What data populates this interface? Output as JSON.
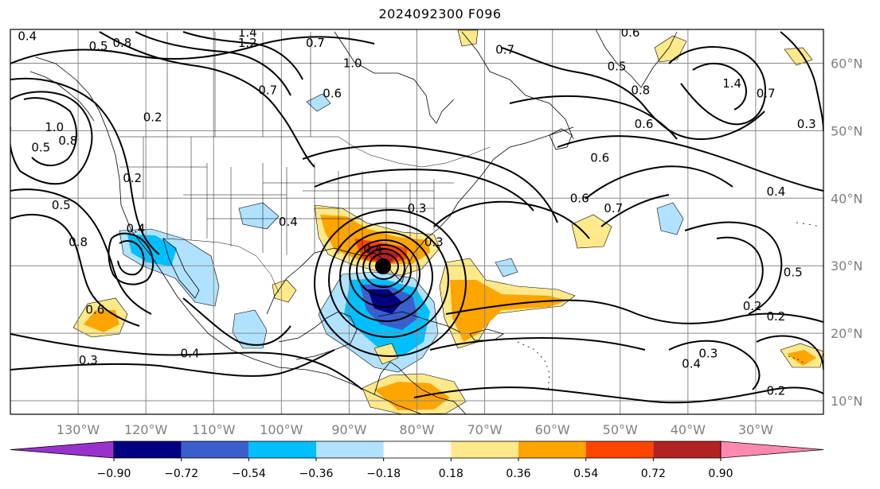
{
  "title": "2024092300 F096",
  "map": {
    "projection": "PlateCarree",
    "lon_range": [
      -140,
      -20
    ],
    "lat_range": [
      8,
      65
    ],
    "grid": true,
    "lon_ticks": [
      {
        "lon": -130,
        "label": "130°W"
      },
      {
        "lon": -120,
        "label": "120°W"
      },
      {
        "lon": -110,
        "label": "110°W"
      },
      {
        "lon": -100,
        "label": "100°W"
      },
      {
        "lon": -90,
        "label": "90°W"
      },
      {
        "lon": -80,
        "label": "80°W"
      },
      {
        "lon": -70,
        "label": "70°W"
      },
      {
        "lon": -60,
        "label": "60°W"
      },
      {
        "lon": -50,
        "label": "50°W"
      },
      {
        "lon": -40,
        "label": "40°W"
      },
      {
        "lon": -30,
        "label": "30°W"
      }
    ],
    "lat_ticks": [
      {
        "lat": 60,
        "label": "60°N"
      },
      {
        "lat": 50,
        "label": "50°N"
      },
      {
        "lat": 40,
        "label": "40°N"
      },
      {
        "lat": 30,
        "label": "30°N"
      },
      {
        "lat": 20,
        "label": "20°N"
      },
      {
        "lat": 10,
        "label": "10°N"
      }
    ]
  },
  "colorbar": {
    "levels": [
      "−0.90",
      "−0.72",
      "−0.54",
      "−0.36",
      "−0.18",
      "0.18",
      "0.36",
      "0.54",
      "0.72",
      "0.90"
    ],
    "colors": [
      "#9932cc",
      "#000080",
      "#3a5fcd",
      "#00bfff",
      "#b0e2ff",
      "#ffffff",
      "#ffe98a",
      "#ffa500",
      "#ff4500",
      "#b22222",
      "#ff88b0"
    ],
    "extend": "both"
  },
  "contour_labels": [
    {
      "text": "0.4",
      "lon": -137.5,
      "lat": 64.0
    },
    {
      "text": "0.5",
      "lon": -127.0,
      "lat": 62.5
    },
    {
      "text": "0.8",
      "lon": -123.5,
      "lat": 63.0
    },
    {
      "text": "1.4",
      "lon": -105.0,
      "lat": 64.5
    },
    {
      "text": "1.2",
      "lon": -105.0,
      "lat": 63.0
    },
    {
      "text": "0.7",
      "lon": -95.0,
      "lat": 63.0
    },
    {
      "text": "1.0",
      "lon": -89.5,
      "lat": 60.0
    },
    {
      "text": "0.7",
      "lon": -102.0,
      "lat": 56.0
    },
    {
      "text": "0.6",
      "lon": -92.5,
      "lat": 55.5
    },
    {
      "text": "0.2",
      "lon": -119.0,
      "lat": 52.0
    },
    {
      "text": "1.0",
      "lon": -133.5,
      "lat": 50.5
    },
    {
      "text": "0.8",
      "lon": -131.5,
      "lat": 48.5
    },
    {
      "text": "0.5",
      "lon": -135.5,
      "lat": 47.5
    },
    {
      "text": "0.2",
      "lon": -122.0,
      "lat": 43.0
    },
    {
      "text": "0.5",
      "lon": -132.5,
      "lat": 39.0
    },
    {
      "text": "0.4",
      "lon": -121.5,
      "lat": 35.5
    },
    {
      "text": "0.8",
      "lon": -130.0,
      "lat": 33.5
    },
    {
      "text": "0.6",
      "lon": -127.5,
      "lat": 23.5
    },
    {
      "text": "0.4",
      "lon": -99.0,
      "lat": 36.5
    },
    {
      "text": "0.3",
      "lon": -128.5,
      "lat": 16.0
    },
    {
      "text": "0.4",
      "lon": -113.5,
      "lat": 17.0
    },
    {
      "text": "0.4",
      "lon": -86.5,
      "lat": 32.5
    },
    {
      "text": "0.3",
      "lon": -77.5,
      "lat": 33.5
    },
    {
      "text": "0.3",
      "lon": -80.0,
      "lat": 38.5
    },
    {
      "text": "0.6",
      "lon": -48.5,
      "lat": 64.5
    },
    {
      "text": "0.7",
      "lon": -67.0,
      "lat": 62.0
    },
    {
      "text": "0.5",
      "lon": -50.5,
      "lat": 59.5
    },
    {
      "text": "0.8",
      "lon": -47.0,
      "lat": 56.0
    },
    {
      "text": "0.6",
      "lon": -46.5,
      "lat": 51.0
    },
    {
      "text": "1.4",
      "lon": -33.5,
      "lat": 57.0
    },
    {
      "text": "0.7",
      "lon": -28.5,
      "lat": 55.5
    },
    {
      "text": "0.3",
      "lon": -22.5,
      "lat": 51.0
    },
    {
      "text": "0.6",
      "lon": -53.0,
      "lat": 46.0
    },
    {
      "text": "0.4",
      "lon": -27.0,
      "lat": 41.0
    },
    {
      "text": "0.6",
      "lon": -56.0,
      "lat": 40.0
    },
    {
      "text": "0.7",
      "lon": -51.0,
      "lat": 38.5
    },
    {
      "text": "0.5",
      "lon": -24.5,
      "lat": 29.0
    },
    {
      "text": "0.2",
      "lon": -30.5,
      "lat": 24.0
    },
    {
      "text": "0.2",
      "lon": -27.0,
      "lat": 22.5
    },
    {
      "text": "0.4",
      "lon": -39.5,
      "lat": 15.5
    },
    {
      "text": "0.3",
      "lon": -37.0,
      "lat": 17.0
    },
    {
      "text": "0.2",
      "lon": -27.0,
      "lat": 11.5
    }
  ]
}
